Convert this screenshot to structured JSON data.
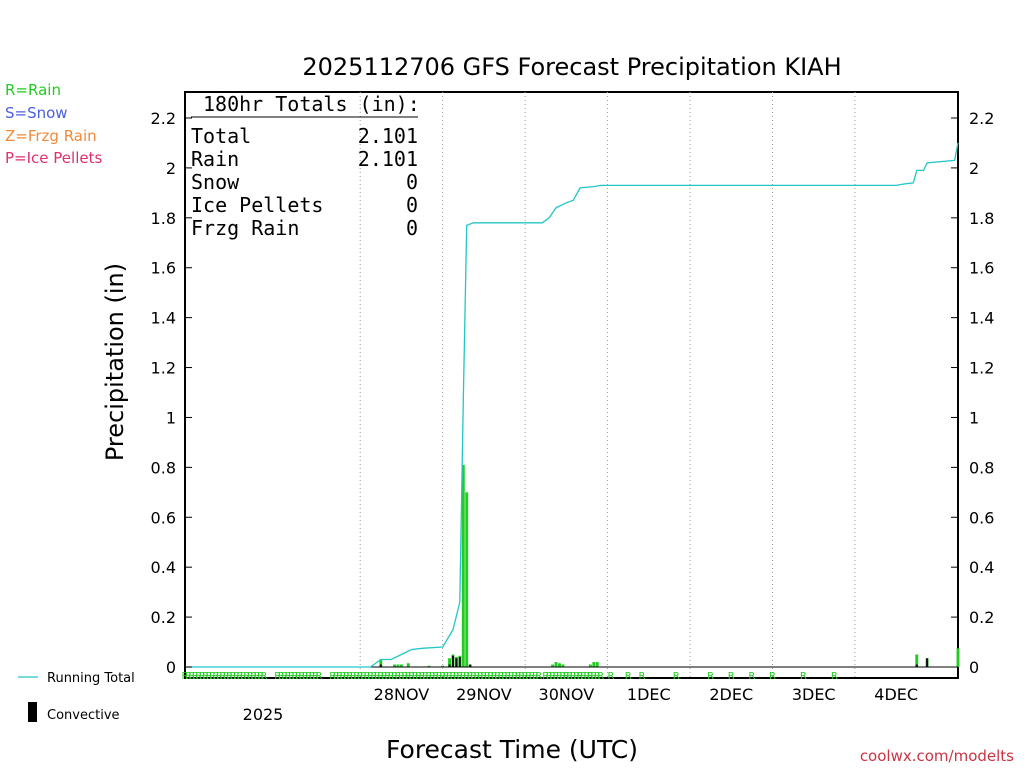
{
  "chart_data": {
    "type": "bar",
    "title": "2025112706 GFS Forecast Precipitation KIAH",
    "xlabel": "Forecast Time (UTC)",
    "ylabel": "Precipitation (in)",
    "ylim": [
      0,
      2.3
    ],
    "xlim_hours": [
      -45,
      180
    ],
    "y_ticks": [
      0,
      0.2,
      0.4,
      0.6,
      0.8,
      1,
      1.2,
      1.4,
      1.6,
      1.8,
      2,
      2.2
    ],
    "y_tick_labels": [
      "0",
      "0.2",
      "0.4",
      "0.6",
      "0.8",
      "1",
      "1.2",
      "1.4",
      "1.6",
      "1.8",
      "2",
      "2.2"
    ],
    "x_day_labels": [
      {
        "label": "28NOV",
        "hour": 18
      },
      {
        "label": "29NOV",
        "hour": 42
      },
      {
        "label": "30NOV",
        "hour": 66
      },
      {
        "label": "1DEC",
        "hour": 90
      },
      {
        "label": "2DEC",
        "hour": 114
      },
      {
        "label": "3DEC",
        "hour": 138
      },
      {
        "label": "4DEC",
        "hour": 162
      }
    ],
    "x_year_label": "2025",
    "grid": true,
    "legend": [
      {
        "label": "R=Rain",
        "color": "#22cc22"
      },
      {
        "label": "S=Snow",
        "color": "#4a5ee0"
      },
      {
        "label": "Z=Frzg Rain",
        "color": "#f08a3a"
      },
      {
        "label": "P=Ice Pellets",
        "color": "#e0306e"
      }
    ],
    "series_legend": {
      "running_total": "Running Total",
      "convective": "Convective"
    },
    "totals_box": {
      "heading": "180hr Totals (in):",
      "rows": [
        {
          "label": "Total",
          "value": "2.101"
        },
        {
          "label": "Rain",
          "value": "2.101"
        },
        {
          "label": "Snow",
          "value": "0"
        },
        {
          "label": "Ice Pellets",
          "value": "0"
        },
        {
          "label": "Frzg Rain",
          "value": "0"
        }
      ]
    },
    "precip_bars": [
      {
        "hour": 12,
        "value": 0.03,
        "convective": 0.01
      },
      {
        "hour": 16,
        "value": 0.01,
        "convective": 0
      },
      {
        "hour": 17,
        "value": 0.01,
        "convective": 0
      },
      {
        "hour": 18,
        "value": 0.01,
        "convective": 0
      },
      {
        "hour": 20,
        "value": 0.015,
        "convective": 0
      },
      {
        "hour": 26,
        "value": 0.005,
        "convective": 0
      },
      {
        "hour": 30,
        "value": 0.005,
        "convective": 0
      },
      {
        "hour": 32,
        "value": 0.035,
        "convective": 0.01
      },
      {
        "hour": 33,
        "value": 0.05,
        "convective": 0.045
      },
      {
        "hour": 34,
        "value": 0.04,
        "convective": 0.035
      },
      {
        "hour": 35,
        "value": 0.045,
        "convective": 0.04
      },
      {
        "hour": 36,
        "value": 0.81,
        "convective": 0
      },
      {
        "hour": 37,
        "value": 0.7,
        "convective": 0
      },
      {
        "hour": 38,
        "value": 0.01,
        "convective": 0.01
      },
      {
        "hour": 62,
        "value": 0.01,
        "convective": 0
      },
      {
        "hour": 63,
        "value": 0.02,
        "convective": 0
      },
      {
        "hour": 64,
        "value": 0.015,
        "convective": 0
      },
      {
        "hour": 65,
        "value": 0.01,
        "convective": 0
      },
      {
        "hour": 73,
        "value": 0.01,
        "convective": 0
      },
      {
        "hour": 74,
        "value": 0.02,
        "convective": 0
      },
      {
        "hour": 75,
        "value": 0.02,
        "convective": 0
      },
      {
        "hour": 168,
        "value": 0.05,
        "convective": 0.01
      },
      {
        "hour": 171,
        "value": 0.035,
        "convective": 0.035
      },
      {
        "hour": 180,
        "value": 0.075,
        "convective": 0
      }
    ],
    "running_total": [
      {
        "hour": -45,
        "value": 0
      },
      {
        "hour": 9,
        "value": 0
      },
      {
        "hour": 12,
        "value": 0.03
      },
      {
        "hour": 15,
        "value": 0.03
      },
      {
        "hour": 18,
        "value": 0.05
      },
      {
        "hour": 21,
        "value": 0.07
      },
      {
        "hour": 24,
        "value": 0.075
      },
      {
        "hour": 30,
        "value": 0.08
      },
      {
        "hour": 33,
        "value": 0.15
      },
      {
        "hour": 35,
        "value": 0.26
      },
      {
        "hour": 36,
        "value": 1.07
      },
      {
        "hour": 37,
        "value": 1.77
      },
      {
        "hour": 39,
        "value": 1.78
      },
      {
        "hour": 59,
        "value": 1.78
      },
      {
        "hour": 61,
        "value": 1.8
      },
      {
        "hour": 63,
        "value": 1.84
      },
      {
        "hour": 66,
        "value": 1.86
      },
      {
        "hour": 68,
        "value": 1.87
      },
      {
        "hour": 70,
        "value": 1.92
      },
      {
        "hour": 74,
        "value": 1.925
      },
      {
        "hour": 76,
        "value": 1.93
      },
      {
        "hour": 162,
        "value": 1.93
      },
      {
        "hour": 164,
        "value": 1.935
      },
      {
        "hour": 167,
        "value": 1.94
      },
      {
        "hour": 168,
        "value": 1.99
      },
      {
        "hour": 170,
        "value": 1.99
      },
      {
        "hour": 171,
        "value": 2.02
      },
      {
        "hour": 179,
        "value": 2.03
      },
      {
        "hour": 180,
        "value": 2.101
      }
    ],
    "ptype_marks": {
      "label": "R",
      "dense_ranges": [
        [
          -45,
          -34
        ],
        [
          -33,
          -22
        ],
        [
          -18,
          -6
        ],
        [
          -2,
          58
        ],
        [
          60,
          75
        ]
      ],
      "single_hours": [
        66,
        70,
        73,
        76,
        79,
        84,
        88,
        98,
        108,
        114,
        120,
        126,
        135,
        144
      ]
    }
  },
  "credit": "coolwx.com/modelts",
  "colors": {
    "rain": "#22cc22",
    "convective": "#111111",
    "running_total": "#22c6c6",
    "grid": "#9a9a9a",
    "credit": "#cc3344"
  }
}
